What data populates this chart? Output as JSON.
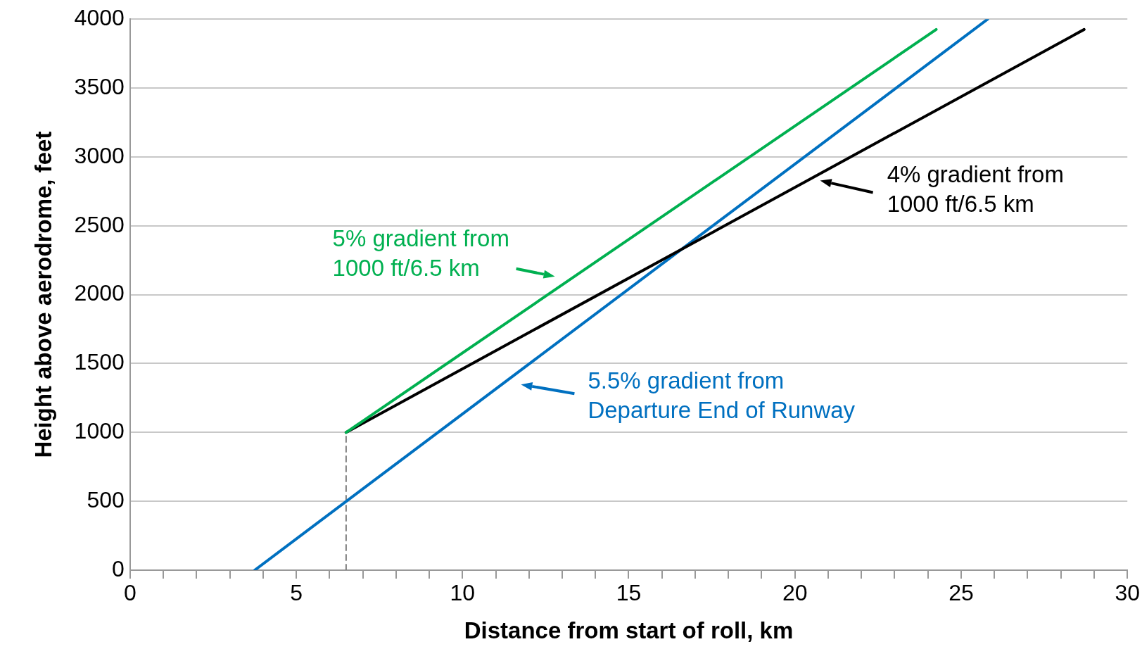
{
  "chart_data": {
    "type": "line",
    "xlabel": "Distance from start of roll, km",
    "ylabel": "Height above aerodrome, feet",
    "xlim": [
      0,
      30
    ],
    "xticks": [
      0,
      {
        "value": 1,
        "label": null
      },
      {
        "value": 2,
        "label": null
      },
      {
        "value": 3,
        "label": null
      },
      {
        "value": 4,
        "label": null
      },
      5,
      {
        "value": 6,
        "label": null
      },
      {
        "value": 7,
        "label": null
      },
      {
        "value": 8,
        "label": null
      },
      {
        "value": 9,
        "label": null
      },
      10,
      {
        "value": 11,
        "label": null
      },
      {
        "value": 12,
        "label": null
      },
      {
        "value": 13,
        "label": null
      },
      {
        "value": 14,
        "label": null
      },
      15,
      {
        "value": 16,
        "label": null
      },
      {
        "value": 17,
        "label": null
      },
      {
        "value": 18,
        "label": null
      },
      {
        "value": 19,
        "label": null
      },
      20,
      {
        "value": 21,
        "label": null
      },
      {
        "value": 22,
        "label": null
      },
      {
        "value": 23,
        "label": null
      },
      {
        "value": 24,
        "label": null
      },
      25,
      {
        "value": 26,
        "label": null
      },
      {
        "value": 27,
        "label": null
      },
      {
        "value": 28,
        "label": null
      },
      {
        "value": 29,
        "label": null
      },
      30
    ],
    "ylim": [
      0,
      4000
    ],
    "yticks": [
      0,
      500,
      1000,
      1500,
      2000,
      2500,
      3000,
      3500,
      4000
    ],
    "grid": "y",
    "legend": false,
    "marker": "none",
    "series": [
      {
        "color": "#00b050",
        "x": [
          6.5,
          24.25
        ],
        "values": [
          1000,
          3925
        ]
      },
      {
        "color": "#000000",
        "x": [
          6.5,
          28.7
        ],
        "values": [
          1000,
          3925
        ]
      },
      {
        "color": "#0070c0",
        "x": [
          3.75,
          25.8
        ],
        "values": [
          0,
          4000
        ]
      },
      {
        "color": "#808080",
        "line_style": "dashed",
        "x": [
          6.5,
          6.5
        ],
        "values": [
          0,
          1000
        ]
      }
    ],
    "annotations": [
      "5% gradient from\n1000 ft/6.5 km",
      "4% gradient from\n1000 ft/6.5 km",
      "5.5% gradient from\nDeparture End of Runway"
    ]
  }
}
